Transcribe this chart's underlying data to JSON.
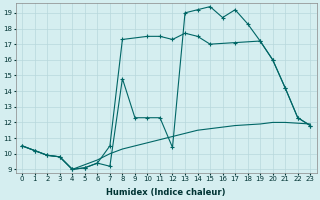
{
  "xlabel": "Humidex (Indice chaleur)",
  "bg_color": "#d5eef0",
  "grid_color": "#b8d8dc",
  "line_color": "#006666",
  "xlim": [
    -0.5,
    23.5
  ],
  "ylim": [
    8.8,
    19.6
  ],
  "yticks": [
    9,
    10,
    11,
    12,
    13,
    14,
    15,
    16,
    17,
    18,
    19
  ],
  "xticks": [
    0,
    1,
    2,
    3,
    4,
    5,
    6,
    7,
    8,
    9,
    10,
    11,
    12,
    13,
    14,
    15,
    16,
    17,
    18,
    19,
    20,
    21,
    22,
    23
  ],
  "line1_x": [
    0,
    1,
    2,
    3,
    4,
    5,
    6,
    7,
    8,
    9,
    10,
    11,
    12,
    13,
    14,
    15,
    16,
    17,
    18,
    19,
    20,
    21,
    22,
    23
  ],
  "line1_y": [
    10.5,
    10.2,
    9.9,
    9.8,
    9.0,
    9.1,
    9.4,
    9.2,
    14.8,
    12.3,
    12.3,
    12.3,
    10.4,
    19.0,
    19.2,
    19.4,
    18.7,
    19.2,
    18.3,
    17.2,
    16.0,
    14.2,
    12.3,
    11.8
  ],
  "line2_x": [
    0,
    1,
    2,
    3,
    4,
    5,
    6,
    7,
    8,
    10,
    11,
    12,
    13,
    14,
    15,
    17,
    19,
    20,
    21,
    22,
    23
  ],
  "line2_y": [
    10.5,
    10.2,
    9.9,
    9.8,
    9.0,
    9.1,
    9.4,
    10.5,
    17.3,
    17.5,
    17.5,
    17.3,
    17.7,
    17.5,
    17.0,
    17.1,
    17.2,
    16.0,
    14.2,
    12.3,
    11.8
  ],
  "line3_x": [
    0,
    1,
    2,
    3,
    4,
    5,
    6,
    7,
    8,
    9,
    10,
    11,
    12,
    13,
    14,
    15,
    16,
    17,
    18,
    19,
    20,
    21,
    22,
    23
  ],
  "line3_y": [
    10.5,
    10.2,
    9.9,
    9.8,
    9.0,
    9.3,
    9.6,
    10.0,
    10.3,
    10.5,
    10.7,
    10.9,
    11.1,
    11.3,
    11.5,
    11.6,
    11.7,
    11.8,
    11.85,
    11.9,
    12.0,
    12.0,
    11.95,
    11.9
  ]
}
